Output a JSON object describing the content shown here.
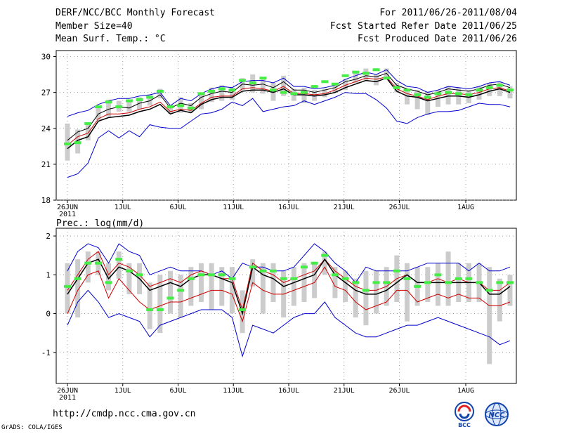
{
  "header": {
    "title": "DERF/NCC/BCC Monthly Forecast",
    "member_size": "Member Size=40",
    "variable": "Mean Surf. Temp.: °C",
    "period": "For 2011/06/26-2011/08/04",
    "start_date": "Fcst Started Refer Date 2011/06/25",
    "produced_date": "Fcst Produced Date 2011/06/26"
  },
  "footer": {
    "url": "http://cmdp.ncc.cma.gov.cn",
    "grads": "GrADS: COLA/IGES",
    "logo_bcc_text": "BCC",
    "logo_ncc_text": "NCC"
  },
  "x_axis": {
    "tick_labels": [
      "26JUN",
      "1JUL",
      "6JUL",
      "11JUL",
      "16JUL",
      "21JUL",
      "26JUL",
      "1AUG"
    ],
    "tick_days": [
      0,
      5,
      10,
      15,
      20,
      25,
      30,
      36
    ],
    "year_label": "2011",
    "ndays": 40
  },
  "colors": {
    "ensemble_mean": "#000000",
    "envelope": "#0000cc",
    "spread": "#cc0000",
    "box": "#cccccc",
    "marker": "#44ee44"
  },
  "chart_data": [
    {
      "type": "line",
      "title": "Mean Surf. Temp.: °C",
      "ylim": [
        18,
        30.5
      ],
      "yticks": [
        18,
        21,
        24,
        27,
        30
      ],
      "series": [
        {
          "name": "max",
          "values": [
            25.0,
            25.3,
            25.5,
            26.0,
            26.3,
            26.5,
            26.5,
            26.7,
            26.8,
            27.0,
            25.9,
            26.5,
            26.3,
            26.9,
            27.3,
            27.5,
            27.4,
            27.9,
            28.0,
            28.0,
            27.8,
            28.2,
            27.5,
            27.5,
            27.3,
            27.4,
            27.6,
            28.1,
            28.4,
            28.7,
            28.5,
            28.9,
            28.0,
            27.5,
            27.4,
            27.0,
            27.2,
            27.5,
            27.4,
            27.3,
            27.5,
            27.8,
            27.9,
            27.6
          ]
        },
        {
          "name": "upper",
          "values": [
            23.0,
            23.7,
            24.0,
            25.2,
            25.6,
            25.8,
            25.7,
            26.1,
            26.3,
            26.8,
            25.7,
            26.1,
            25.9,
            26.6,
            26.9,
            27.1,
            27.0,
            27.7,
            27.6,
            27.7,
            27.4,
            27.9,
            27.2,
            27.2,
            27.0,
            27.2,
            27.4,
            27.9,
            28.1,
            28.4,
            28.3,
            28.6,
            27.6,
            27.3,
            27.1,
            26.8,
            27.0,
            27.3,
            27.2,
            27.1,
            27.3,
            27.6,
            27.7,
            27.4
          ]
        },
        {
          "name": "mean",
          "values": [
            22.6,
            23.3,
            23.6,
            24.8,
            25.2,
            25.2,
            25.3,
            25.6,
            25.8,
            26.2,
            25.4,
            25.6,
            25.5,
            26.1,
            26.6,
            26.7,
            26.7,
            27.3,
            27.4,
            27.3,
            27.1,
            27.5,
            26.9,
            26.9,
            26.8,
            26.9,
            27.2,
            27.6,
            27.9,
            28.2,
            28.1,
            28.3,
            27.3,
            26.9,
            26.7,
            26.4,
            26.7,
            26.9,
            26.9,
            26.8,
            27.0,
            27.3,
            27.4,
            27.1
          ]
        },
        {
          "name": "lower",
          "values": [
            22.3,
            23.0,
            23.3,
            24.6,
            24.9,
            25.0,
            25.1,
            25.4,
            25.6,
            26.0,
            25.2,
            25.5,
            25.3,
            26.0,
            26.4,
            26.6,
            26.6,
            27.1,
            27.2,
            27.2,
            27.0,
            27.3,
            26.8,
            26.8,
            26.7,
            26.8,
            27.0,
            27.4,
            27.7,
            28.0,
            27.9,
            28.2,
            27.1,
            26.7,
            26.6,
            26.3,
            26.5,
            26.7,
            26.7,
            26.6,
            26.8,
            27.1,
            27.3,
            27.0
          ]
        },
        {
          "name": "min",
          "values": [
            19.9,
            20.2,
            21.1,
            23.2,
            23.8,
            23.2,
            23.8,
            23.3,
            24.3,
            24.1,
            24.0,
            24.0,
            24.6,
            25.2,
            25.3,
            25.6,
            26.2,
            25.9,
            26.5,
            25.4,
            25.6,
            25.8,
            25.9,
            26.3,
            26.0,
            26.3,
            26.6,
            27.0,
            26.9,
            26.9,
            26.4,
            25.7,
            24.6,
            24.4,
            24.9,
            25.2,
            25.4,
            25.4,
            25.5,
            25.8,
            26.1,
            26.0,
            26.0,
            25.8
          ]
        }
      ],
      "boxes_low": [
        21.3,
        21.9,
        23.0,
        24.7,
        25.0,
        25.4,
        25.4,
        25.6,
        25.9,
        26.5,
        25.2,
        25.3,
        25.3,
        25.6,
        26.2,
        26.3,
        26.4,
        27.2,
        27.0,
        26.9,
        26.3,
        26.7,
        26.3,
        26.1,
        26.3,
        26.6,
        27.0,
        27.2,
        27.8,
        28.0,
        27.6,
        28.2,
        27.0,
        26.0,
        25.6,
        25.1,
        25.8,
        26.0,
        26.0,
        26.1,
        26.4,
        26.7,
        26.7,
        26.5
      ],
      "boxes_high": [
        24.4,
        23.9,
        24.4,
        25.9,
        26.4,
        26.3,
        26.4,
        26.6,
        26.8,
        27.3,
        25.9,
        26.6,
        26.1,
        26.9,
        27.4,
        27.6,
        27.4,
        28.2,
        28.5,
        28.1,
        27.8,
        28.4,
        27.3,
        27.4,
        27.2,
        27.3,
        27.7,
        28.1,
        28.7,
        29.0,
        28.5,
        29.0,
        27.8,
        27.3,
        27.2,
        27.1,
        27.2,
        27.5,
        27.4,
        27.2,
        27.5,
        27.8,
        27.9,
        27.5
      ],
      "markers": [
        22.7,
        22.8,
        24.4,
        25.8,
        26.2,
        25.8,
        26.3,
        26.4,
        26.6,
        27.1,
        25.8,
        25.9,
        25.7,
        26.9,
        27.1,
        27.3,
        27.2,
        28.0,
        27.8,
        28.2,
        27.2,
        27.0,
        26.9,
        27.0,
        27.5,
        27.9,
        27.7,
        28.4,
        28.7,
        28.6,
        28.9,
        28.2,
        27.4,
        27.2,
        26.8,
        26.6,
        26.9,
        27.0,
        26.9,
        26.8,
        27.2,
        27.4,
        27.6,
        27.2
      ]
    },
    {
      "type": "line",
      "title": "Prec.: log(mm/d)",
      "ylim": [
        -1.8,
        2.2
      ],
      "yticks": [
        -1,
        0,
        1,
        2
      ],
      "series": [
        {
          "name": "max",
          "values": [
            1.1,
            1.6,
            1.8,
            1.7,
            1.3,
            1.8,
            1.6,
            1.5,
            1.0,
            1.1,
            1.2,
            1.1,
            1.1,
            1.1,
            1.0,
            1.1,
            0.9,
            1.3,
            1.2,
            1.2,
            1.1,
            1.1,
            1.2,
            1.5,
            1.8,
            1.6,
            1.3,
            1.1,
            0.8,
            1.2,
            1.1,
            1.1,
            1.1,
            1.1,
            1.2,
            1.3,
            1.3,
            1.3,
            1.3,
            1.1,
            1.3,
            1.1,
            1.1,
            1.2
          ]
        },
        {
          "name": "mean",
          "values": [
            0.6,
            1.0,
            1.4,
            1.6,
            1.0,
            1.3,
            1.2,
            1.0,
            0.7,
            0.8,
            0.9,
            0.8,
            1.0,
            1.1,
            1.0,
            0.9,
            0.9,
            0.1,
            1.3,
            1.1,
            1.0,
            0.8,
            0.9,
            1.0,
            1.1,
            1.4,
            1.1,
            0.9,
            0.7,
            0.6,
            0.6,
            0.7,
            0.9,
            1.0,
            0.8,
            0.8,
            0.9,
            0.8,
            0.9,
            0.8,
            0.8,
            0.6,
            0.6,
            0.8
          ]
        },
        {
          "name": "lower",
          "values": [
            0.5,
            0.9,
            1.3,
            1.4,
            0.9,
            1.2,
            1.1,
            0.9,
            0.6,
            0.7,
            0.8,
            0.7,
            0.9,
            1.0,
            1.0,
            0.9,
            0.8,
            0.0,
            1.2,
            1.0,
            0.9,
            0.7,
            0.8,
            0.9,
            1.0,
            1.4,
            1.0,
            0.8,
            0.6,
            0.5,
            0.5,
            0.6,
            0.8,
            1.0,
            0.8,
            0.8,
            0.8,
            0.8,
            0.8,
            0.8,
            0.8,
            0.5,
            0.5,
            0.7
          ]
        },
        {
          "name": "spread",
          "values": [
            0.0,
            0.6,
            1.0,
            1.1,
            0.4,
            0.9,
            0.6,
            0.3,
            0.1,
            0.2,
            0.3,
            0.3,
            0.4,
            0.5,
            0.6,
            0.6,
            0.5,
            -0.2,
            0.8,
            0.6,
            0.5,
            0.5,
            0.6,
            0.7,
            0.8,
            1.2,
            0.7,
            0.6,
            0.3,
            0.1,
            0.2,
            0.3,
            0.6,
            0.6,
            0.3,
            0.4,
            0.5,
            0.4,
            0.5,
            0.4,
            0.4,
            0.2,
            0.2,
            0.3
          ]
        },
        {
          "name": "min",
          "values": [
            -0.3,
            0.3,
            0.6,
            0.3,
            -0.1,
            0.0,
            -0.1,
            -0.2,
            -0.6,
            -0.3,
            -0.2,
            -0.1,
            0.0,
            0.1,
            0.1,
            0.1,
            -0.1,
            -1.1,
            -0.3,
            -0.4,
            -0.5,
            -0.3,
            -0.1,
            0.0,
            0.0,
            0.3,
            -0.1,
            -0.3,
            -0.5,
            -0.6,
            -0.6,
            -0.5,
            -0.4,
            -0.3,
            -0.3,
            -0.2,
            -0.1,
            -0.2,
            -0.3,
            -0.4,
            -0.5,
            -0.6,
            -0.8,
            -0.7
          ]
        }
      ],
      "boxes_low": [
        0.0,
        -0.1,
        0.8,
        1.0,
        0.6,
        0.9,
        0.5,
        0.5,
        -0.4,
        -0.5,
        0.0,
        -0.1,
        0.2,
        0.3,
        0.1,
        0.2,
        0.0,
        -0.5,
        0.7,
        0.0,
        0.3,
        -0.1,
        0.2,
        0.3,
        0.4,
        1.0,
        0.4,
        0.3,
        -0.1,
        -0.3,
        0.0,
        0.2,
        0.3,
        -0.2,
        0.2,
        0.3,
        0.2,
        0.2,
        0.3,
        0.3,
        0.3,
        -1.3,
        -0.2,
        0.2
      ],
      "boxes_high": [
        1.3,
        1.4,
        1.6,
        1.6,
        1.3,
        1.6,
        1.3,
        1.3,
        0.8,
        1.0,
        1.1,
        1.0,
        1.2,
        1.3,
        1.3,
        1.2,
        1.2,
        0.6,
        1.4,
        1.3,
        1.3,
        1.1,
        1.2,
        1.3,
        1.3,
        1.6,
        1.2,
        1.1,
        0.9,
        1.1,
        1.1,
        1.2,
        1.5,
        1.3,
        1.2,
        1.2,
        1.3,
        1.6,
        1.3,
        1.3,
        1.3,
        1.2,
        0.9,
        1.0
      ],
      "markers": [
        0.7,
        0.9,
        1.3,
        1.3,
        0.8,
        1.4,
        1.1,
        1.0,
        0.1,
        0.1,
        0.4,
        0.6,
        0.9,
        1.0,
        1.0,
        1.0,
        0.9,
        0.1,
        1.2,
        1.1,
        1.1,
        0.9,
        0.9,
        1.2,
        1.3,
        1.5,
        1.0,
        0.9,
        0.8,
        0.6,
        0.8,
        0.8,
        1.1,
        0.9,
        0.7,
        0.8,
        1.0,
        0.8,
        0.9,
        0.9,
        0.8,
        0.6,
        0.8,
        0.8
      ]
    }
  ]
}
